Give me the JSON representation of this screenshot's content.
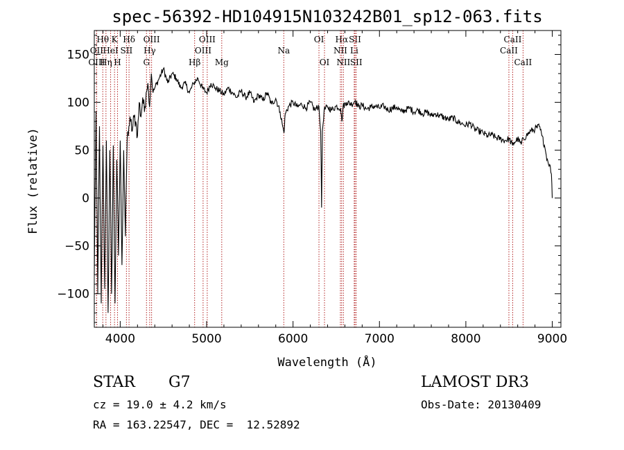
{
  "chart_data": {
    "type": "line",
    "title": "spec-56392-HD104915N103242B01_sp12-063.fits",
    "xlabel": "Wavelength (Å)",
    "ylabel": "Flux (relative)",
    "xlim": [
      3700,
      9100
    ],
    "ylim": [
      -135,
      175
    ],
    "xticks": [
      4000,
      5000,
      6000,
      7000,
      8000,
      9000
    ],
    "yticks": [
      -100,
      -50,
      0,
      50,
      100,
      150
    ],
    "x_tick_labels": [
      "4000",
      "5000",
      "6000",
      "7000",
      "8000",
      "9000"
    ],
    "y_tick_labels": [
      "−100",
      "−50",
      "0",
      "50",
      "100",
      "150"
    ],
    "line_color": "#000000",
    "marker_color": "#b22222",
    "series": [
      {
        "x": [
          3700,
          3720,
          3740,
          3760,
          3780,
          3800,
          3820,
          3840,
          3860,
          3880,
          3900,
          3920,
          3940,
          3960,
          3980,
          4000,
          4020,
          4040,
          4060,
          4080,
          4100,
          4120,
          4140,
          4160,
          4180,
          4200,
          4220,
          4240,
          4260,
          4280,
          4300,
          4320,
          4340,
          4360,
          4380,
          4400,
          4450,
          4500,
          4550,
          4600,
          4650,
          4700,
          4750,
          4800,
          4850,
          4900,
          4950,
          5000,
          5050,
          5100,
          5150,
          5200,
          5250,
          5300,
          5350,
          5400,
          5450,
          5500,
          5550,
          5600,
          5650,
          5700,
          5750,
          5800,
          5850,
          5880,
          5895,
          5910,
          5950,
          6000,
          6050,
          6100,
          6150,
          6200,
          6250,
          6300,
          6320,
          6330,
          6340,
          6360,
          6400,
          6450,
          6500,
          6550,
          6565,
          6580,
          6620,
          6680,
          6720,
          6760,
          6800,
          6850,
          6900,
          6950,
          7000,
          7050,
          7100,
          7150,
          7200,
          7250,
          7300,
          7350,
          7400,
          7450,
          7500,
          7550,
          7600,
          7650,
          7700,
          7750,
          7800,
          7850,
          7900,
          7950,
          8000,
          8050,
          8100,
          8150,
          8200,
          8250,
          8300,
          8350,
          8400,
          8450,
          8500,
          8540,
          8560,
          8600,
          8640,
          8665,
          8700,
          8750,
          8800,
          8850,
          8880,
          8910,
          8930,
          8950,
          8970,
          8990,
          9000
        ],
        "y": [
          -80,
          90,
          -100,
          75,
          -110,
          55,
          -95,
          60,
          -120,
          50,
          -100,
          55,
          -110,
          40,
          -60,
          60,
          -70,
          50,
          -40,
          60,
          75,
          80,
          70,
          85,
          80,
          65,
          100,
          85,
          105,
          90,
          110,
          120,
          95,
          130,
          110,
          115,
          125,
          135,
          120,
          130,
          125,
          115,
          120,
          110,
          120,
          125,
          115,
          110,
          120,
          115,
          112,
          108,
          115,
          110,
          105,
          112,
          105,
          110,
          100,
          108,
          102,
          110,
          98,
          104,
          90,
          75,
          68,
          88,
          96,
          100,
          95,
          98,
          94,
          100,
          92,
          96,
          70,
          -10,
          70,
          92,
          95,
          92,
          96,
          94,
          80,
          96,
          100,
          98,
          102,
          95,
          97,
          93,
          95,
          96,
          94,
          96,
          92,
          94,
          95,
          90,
          92,
          94,
          90,
          92,
          88,
          90,
          86,
          88,
          86,
          84,
          82,
          84,
          80,
          78,
          76,
          78,
          72,
          70,
          68,
          65,
          66,
          63,
          62,
          60,
          62,
          55,
          58,
          62,
          56,
          62,
          65,
          70,
          72,
          75,
          65,
          55,
          45,
          38,
          35,
          25,
          0
        ]
      }
    ],
    "line_markers": [
      {
        "label": "Hθ",
        "x": 3798,
        "row": 1
      },
      {
        "label": "OII",
        "x": 3727,
        "row": 2
      },
      {
        "label": "OIII",
        "x": 3727,
        "row": 3
      },
      {
        "label": "K",
        "x": 3934,
        "row": 1
      },
      {
        "label": "HeI",
        "x": 3889,
        "row": 2
      },
      {
        "label": "Hη",
        "x": 3835,
        "row": 3
      },
      {
        "label": "Hδ",
        "x": 4102,
        "row": 1
      },
      {
        "label": "SII",
        "x": 4072,
        "row": 2
      },
      {
        "label": "H",
        "x": 3969,
        "row": 3
      },
      {
        "label": "OIII",
        "x": 4363,
        "row": 1
      },
      {
        "label": "Hγ",
        "x": 4341,
        "row": 2
      },
      {
        "label": "G",
        "x": 4304,
        "row": 3
      },
      {
        "label": "OIII",
        "x": 5007,
        "row": 1
      },
      {
        "label": "OIII",
        "x": 4959,
        "row": 2
      },
      {
        "label": "Hβ",
        "x": 4861,
        "row": 3
      },
      {
        "label": "Mg",
        "x": 5175,
        "row": 3
      },
      {
        "label": "Na",
        "x": 5893,
        "row": 2
      },
      {
        "label": "OI",
        "x": 6300,
        "row": 1
      },
      {
        "label": "OI",
        "x": 6364,
        "row": 3
      },
      {
        "label": "Hα",
        "x": 6563,
        "row": 1
      },
      {
        "label": "SII",
        "x": 6717,
        "row": 1
      },
      {
        "label": "NII",
        "x": 6548,
        "row": 2
      },
      {
        "label": "Li",
        "x": 6708,
        "row": 2
      },
      {
        "label": "NII",
        "x": 6583,
        "row": 3
      },
      {
        "label": "SII",
        "x": 6731,
        "row": 3
      },
      {
        "label": "CaII",
        "x": 8542,
        "row": 1
      },
      {
        "label": "CaII",
        "x": 8498,
        "row": 2
      },
      {
        "label": "CaII",
        "x": 8662,
        "row": 3
      }
    ]
  },
  "info": {
    "class_label": "STAR",
    "subclass": "G7",
    "survey": "LAMOST DR3",
    "cz_text": "cz = 19.0 ± 4.2 km/s",
    "obs_date": "Obs-Date: 20130409",
    "coords": "RA = 163.22547, DEC =  12.52892"
  }
}
